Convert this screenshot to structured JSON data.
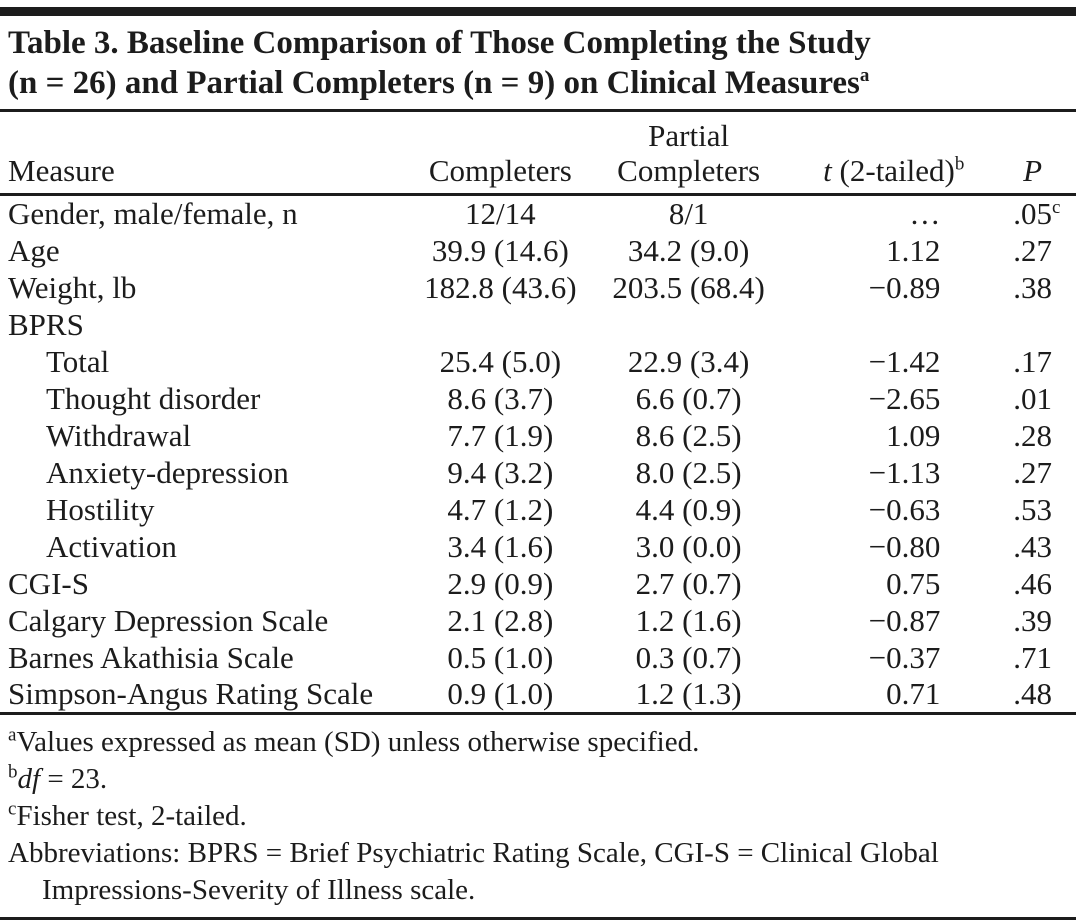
{
  "colors": {
    "ink": "#1c1c1c",
    "background": "#ffffff"
  },
  "title": {
    "line1": "Table 3. Baseline Comparison of Those Completing the Study",
    "line2": "(n = 26) and Partial Completers (n = 9) on Clinical Measures",
    "line2_sup": "a"
  },
  "header": {
    "measure": "Measure",
    "completers": "Completers",
    "partial_line1": "Partial",
    "partial_line2": "Completers",
    "t_italic": "t",
    "t_rest": " (2-tailed)",
    "t_sup": "b",
    "p": "P"
  },
  "rows": [
    {
      "measure": "Gender, male/female, n",
      "completers": "12/14",
      "partial": "8/1",
      "t": "…",
      "p": ".05",
      "p_sup": "c"
    },
    {
      "measure": "Age",
      "completers": "39.9 (14.6)",
      "partial": "34.2 (9.0)",
      "t": "1.12",
      "p": ".27"
    },
    {
      "measure": "Weight, lb",
      "completers": "182.8 (43.6)",
      "partial": "203.5 (68.4)",
      "t": "−0.89",
      "p": ".38"
    },
    {
      "measure": "BPRS",
      "completers": "",
      "partial": "",
      "t": "",
      "p": ""
    },
    {
      "measure": "Total",
      "completers": "25.4 (5.0)",
      "partial": "22.9 (3.4)",
      "t": "−1.42",
      "p": ".17"
    },
    {
      "measure": "Thought disorder",
      "completers": "8.6 (3.7)",
      "partial": "6.6 (0.7)",
      "t": "−2.65",
      "p": ".01"
    },
    {
      "measure": "Withdrawal",
      "completers": "7.7 (1.9)",
      "partial": "8.6 (2.5)",
      "t": "1.09",
      "p": ".28"
    },
    {
      "measure": "Anxiety-depression",
      "completers": "9.4 (3.2)",
      "partial": "8.0 (2.5)",
      "t": "−1.13",
      "p": ".27"
    },
    {
      "measure": "Hostility",
      "completers": "4.7 (1.2)",
      "partial": "4.4 (0.9)",
      "t": "−0.63",
      "p": ".53"
    },
    {
      "measure": "Activation",
      "completers": "3.4 (1.6)",
      "partial": "3.0 (0.0)",
      "t": "−0.80",
      "p": ".43"
    },
    {
      "measure": "CGI-S",
      "completers": "2.9 (0.9)",
      "partial": "2.7 (0.7)",
      "t": "0.75",
      "p": ".46"
    },
    {
      "measure": "Calgary Depression Scale",
      "completers": "2.1 (2.8)",
      "partial": "1.2 (1.6)",
      "t": "−0.87",
      "p": ".39"
    },
    {
      "measure": "Barnes Akathisia Scale",
      "completers": "0.5 (1.0)",
      "partial": "0.3 (0.7)",
      "t": "−0.37",
      "p": ".71"
    },
    {
      "measure": "Simpson-Angus Rating Scale",
      "completers": "0.9 (1.0)",
      "partial": "1.2 (1.3)",
      "t": "0.71",
      "p": ".48"
    }
  ],
  "footnotes": {
    "a_marker": "a",
    "a_text": "Values expressed as mean (SD) unless otherwise specified.",
    "b_marker": "b",
    "b_italic": "df",
    "b_rest": " = 23.",
    "c_marker": "c",
    "c_text": "Fisher test, 2-tailed.",
    "abbrev": "Abbreviations: BPRS = Brief Psychiatric Rating Scale, CGI-S = Clinical Global Impressions-Severity of Illness scale."
  }
}
